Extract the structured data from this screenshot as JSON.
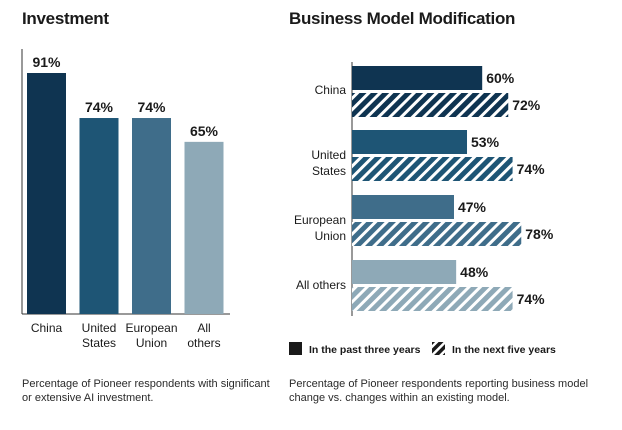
{
  "chart_data": [
    {
      "type": "bar",
      "title": "Investment",
      "categories": [
        "China",
        "United\nStates",
        "European\nUnion",
        "All\nothers"
      ],
      "values": [
        91,
        74,
        74,
        65
      ],
      "value_labels": [
        "91%",
        "74%",
        "74%",
        "65%"
      ],
      "colors": [
        "#0f3451",
        "#1e5575",
        "#3f6d8a",
        "#8ea9b7"
      ],
      "ylim": [
        0,
        100
      ],
      "xlabel": "",
      "ylabel": "",
      "grid": false,
      "caption": "Percentage of Pioneer respondents with significant or extensive AI investment."
    },
    {
      "type": "bar",
      "orientation": "horizontal",
      "title": "Business Model Modification",
      "categories": [
        "China",
        "United\nStates",
        "European\nUnion",
        "All others"
      ],
      "series": [
        {
          "name": "In the past three years",
          "values": [
            60,
            53,
            47,
            48
          ],
          "value_labels": [
            "60%",
            "53%",
            "47%",
            "48%"
          ],
          "pattern": "solid"
        },
        {
          "name": "In the next five years",
          "values": [
            72,
            74,
            78,
            74
          ],
          "value_labels": [
            "72%",
            "74%",
            "78%",
            "74%"
          ],
          "pattern": "hatched"
        }
      ],
      "colors": [
        "#0f3451",
        "#1e5575",
        "#3f6d8a",
        "#8ea9b7"
      ],
      "xlim": [
        0,
        100
      ],
      "grid": false,
      "legend_position": "bottom",
      "caption": "Percentage of Pioneer respondents reporting business model change vs. changes within an existing model."
    }
  ]
}
